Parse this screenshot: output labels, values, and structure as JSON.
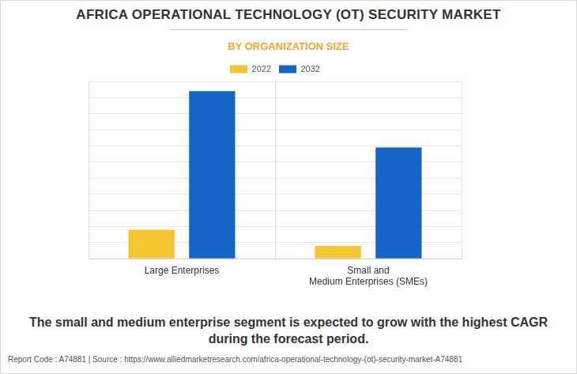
{
  "chart_data": {
    "type": "bar",
    "title": "AFRICA OPERATIONAL TECHNOLOGY (OT) SECURITY MARKET",
    "subtitle": "BY ORGANIZATION SIZE",
    "annotations": [
      "The small and medium enterprise segment is expected to grow with the highest CAGR during the forecast period.",
      "Report Code : A74881  |  Source : https://www.alliedmarketresearch.com/africa-operational-technology-(ot)-security-market-A74881"
    ],
    "categories": [
      "Large Enterprises",
      "Small and\nMedium Enterprises (SMEs)"
    ],
    "series": [
      {
        "name": "2022",
        "color": "#f5c631",
        "values": [
          1.8,
          0.8
        ]
      },
      {
        "name": "2032",
        "color": "#1565c8",
        "values": [
          10.4,
          6.9
        ]
      }
    ],
    "ylim": [
      0,
      11
    ],
    "yticks": [
      0,
      1,
      2,
      3,
      4,
      5,
      6,
      7,
      8,
      9,
      10,
      11
    ],
    "grid": true,
    "legend": "top",
    "tick_labels": "x"
  }
}
